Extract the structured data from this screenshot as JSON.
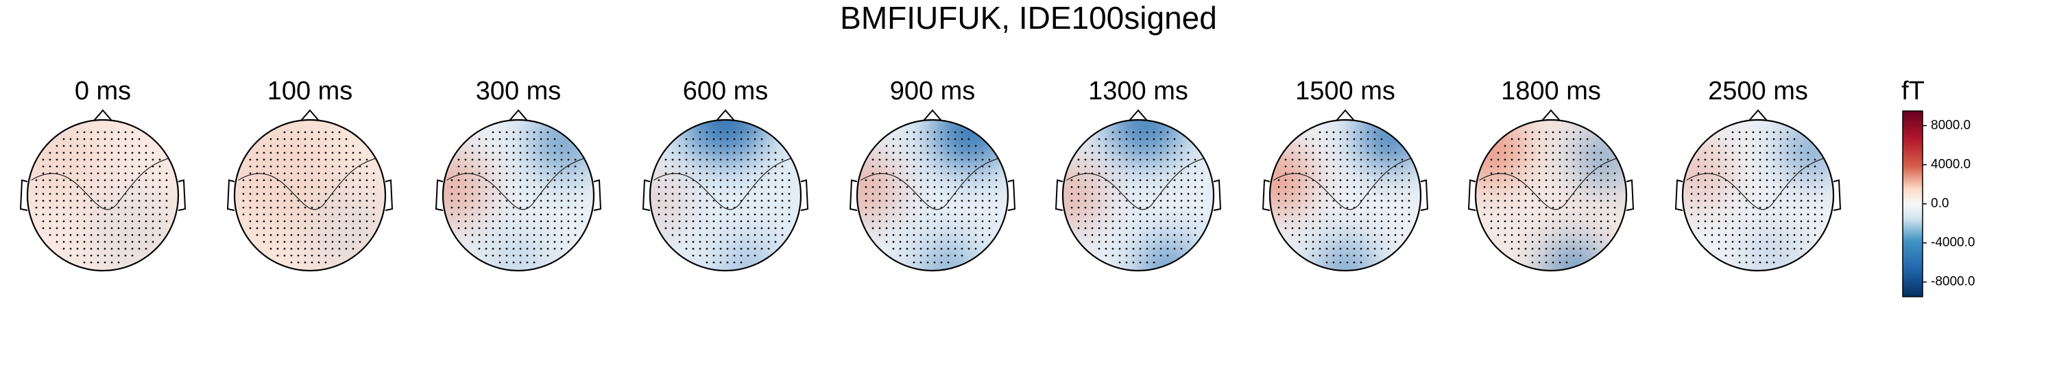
{
  "chart_data": {
    "type": "topomap",
    "title": "BMFIUFUK, IDE100signed",
    "panels": [
      "0 ms",
      "100 ms",
      "300 ms",
      "600 ms",
      "900 ms",
      "1300 ms",
      "1500 ms",
      "1800 ms",
      "2500 ms"
    ],
    "colorbar_label": "fT",
    "ylim": [
      -9500,
      9500
    ],
    "yticks": [
      {
        "value": 8000,
        "label": "8000.0"
      },
      {
        "value": 4000,
        "label": "4000.0"
      },
      {
        "value": 0,
        "label": "0.0"
      },
      {
        "value": -4000,
        "label": "-4000.0"
      },
      {
        "value": -8000,
        "label": "-8000.0"
      }
    ]
  }
}
